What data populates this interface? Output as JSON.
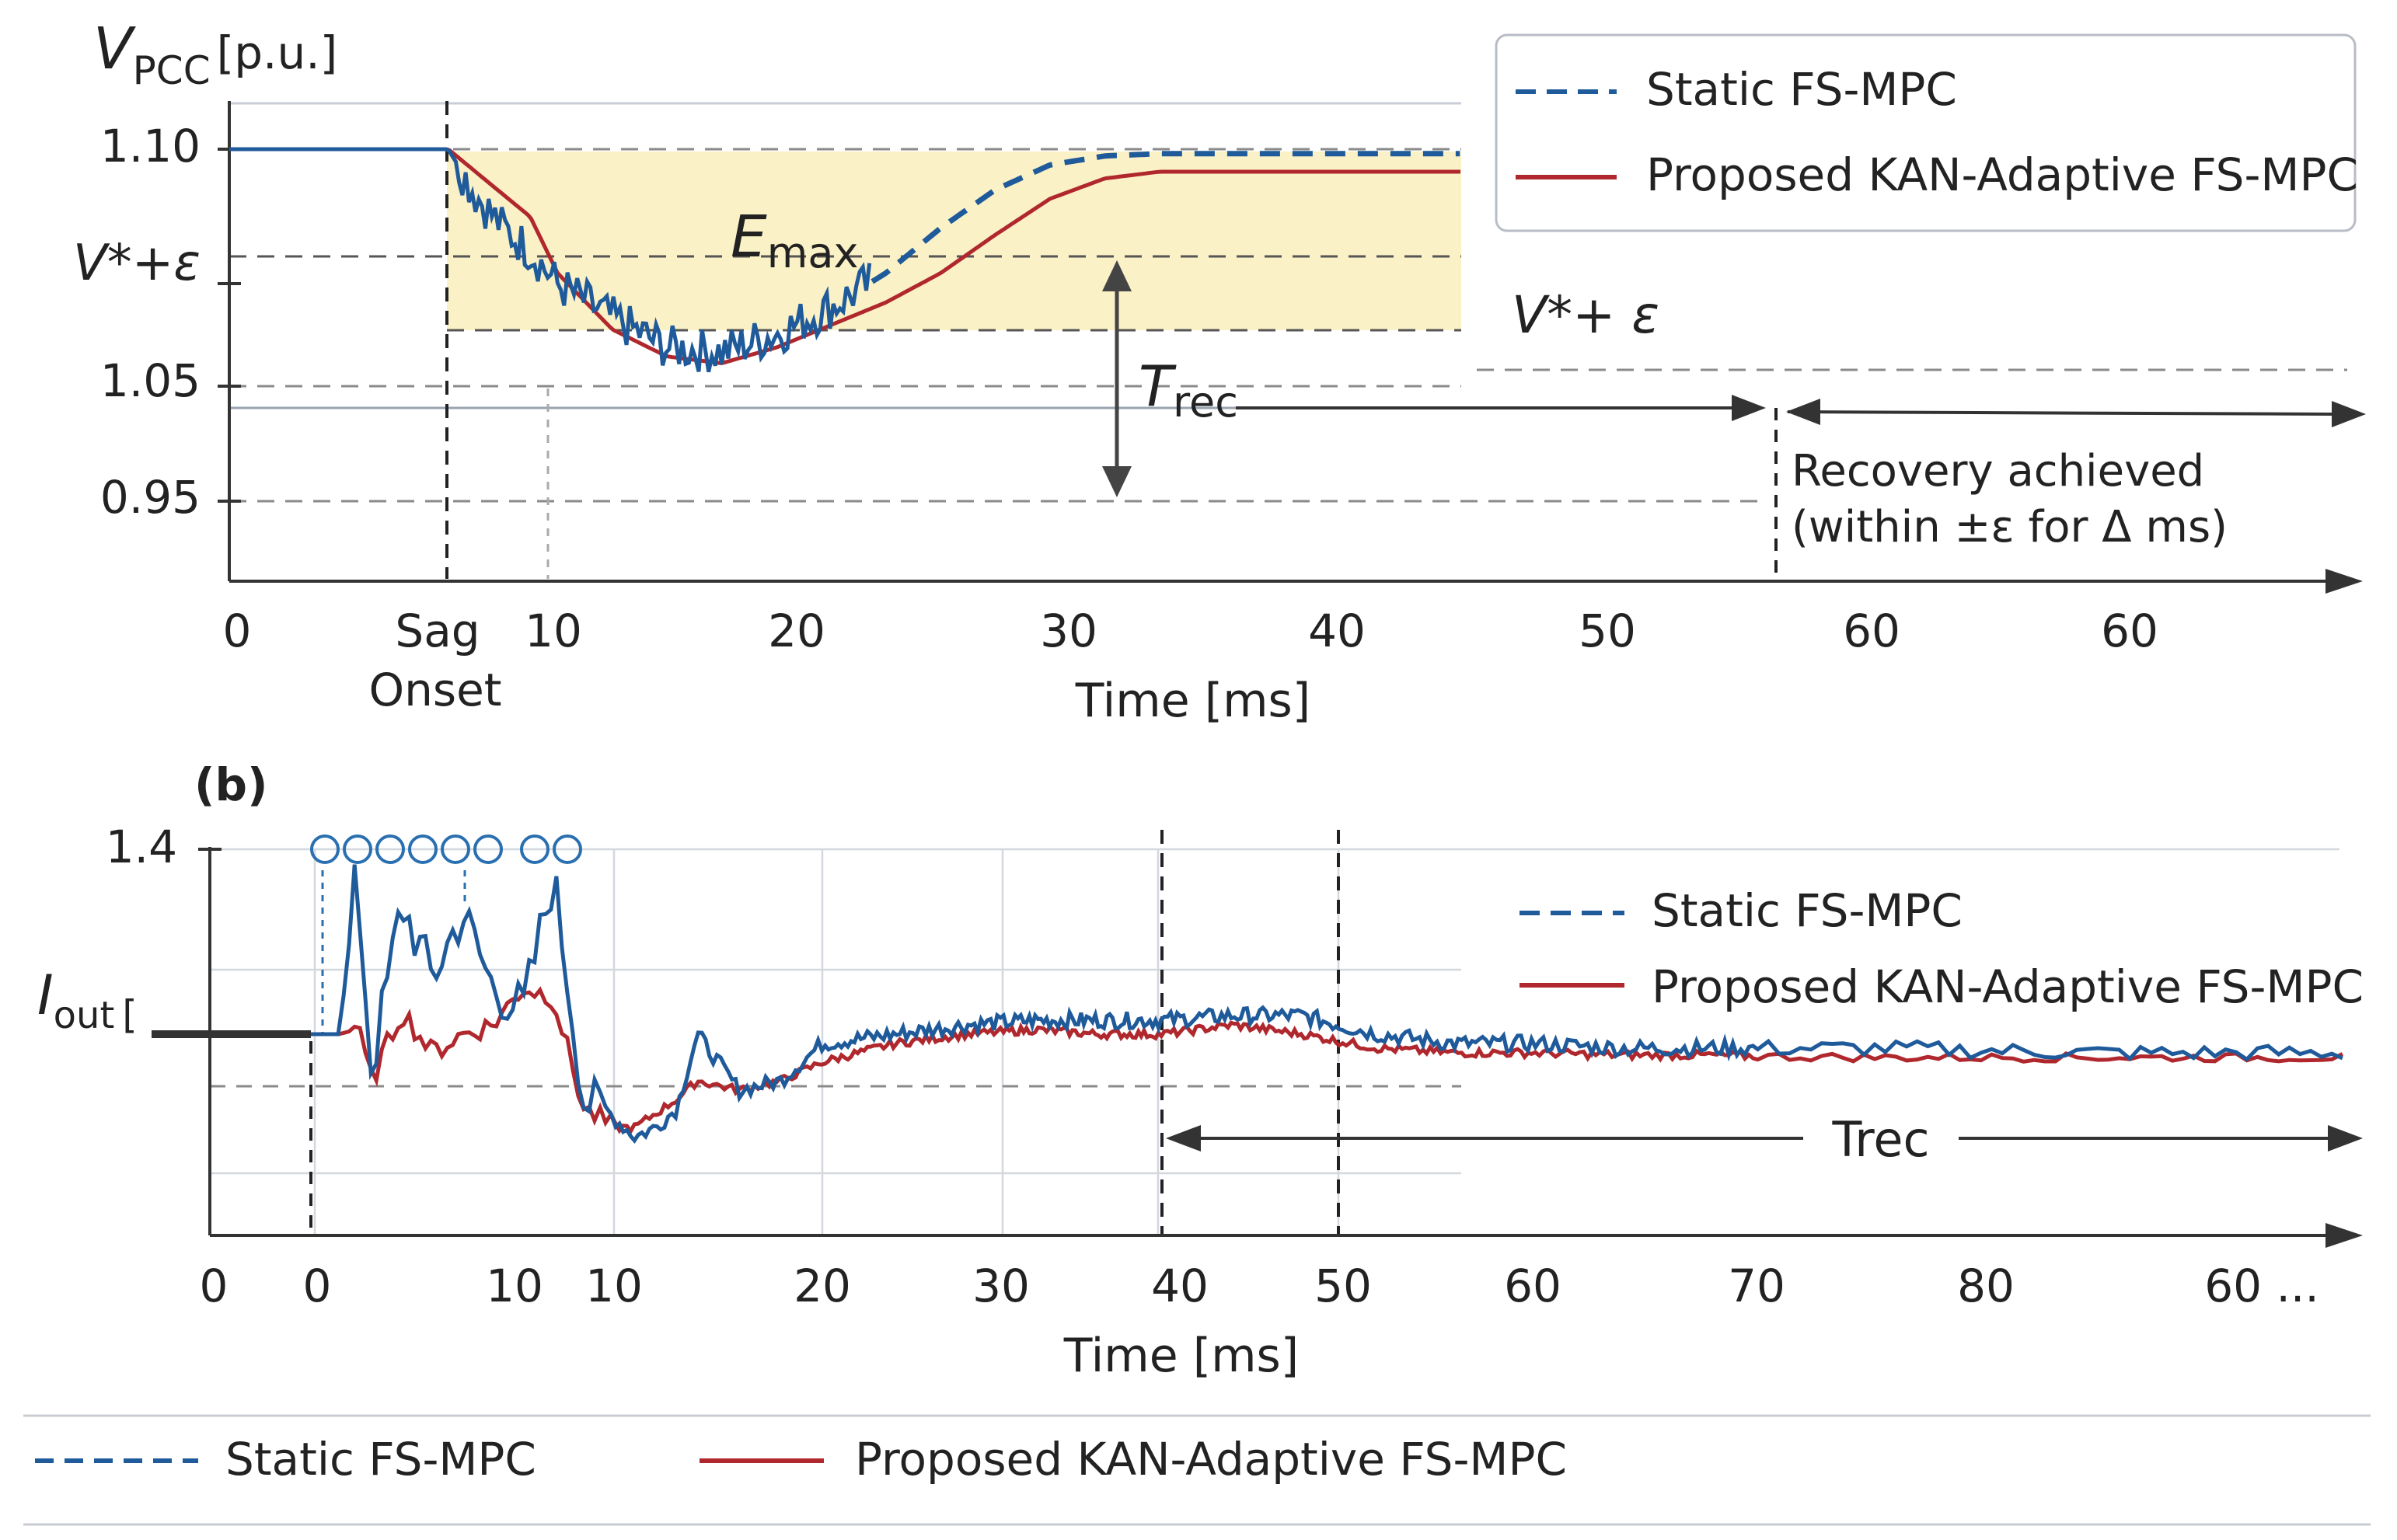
{
  "colors": {
    "static": "#1f5a9a",
    "adaptive": "#b0282d",
    "band": "#fbf1c6",
    "axis": "#333333",
    "dashed_guide": "#8a8a8a",
    "grid": "#c8cdd6"
  },
  "chart_data": [
    {
      "type": "line",
      "panel": "a",
      "ylabel_main": "V",
      "ylabel_sub": "PCC",
      "ylabel_unit": "[p.u.]",
      "xlabel": "Time [ms]",
      "x_tick_labels": [
        "0",
        "Sag",
        "10",
        "20",
        "30",
        "40",
        "50",
        "60",
        "60"
      ],
      "x_tick_label_onset": "Onset",
      "y_tick_labels": [
        "1.10",
        "V*+ε",
        "1.05",
        "0.95"
      ],
      "series": [
        {
          "name": "Static FS-MPC",
          "style": "dashed",
          "x": [
            0,
            8,
            9,
            10,
            11,
            12,
            14,
            16,
            18,
            20,
            22,
            24,
            26,
            28,
            30,
            32,
            34,
            36,
            40,
            45
          ],
          "y": [
            1.1,
            1.1,
            1.08,
            1.065,
            1.055,
            1.04,
            1.025,
            1.012,
            1.01,
            1.018,
            1.03,
            1.045,
            1.065,
            1.082,
            1.093,
            1.097,
            1.098,
            1.098,
            1.098,
            1.098
          ]
        },
        {
          "name": "Proposed KAN-Adaptive FS-MPC",
          "style": "solid",
          "x": [
            0,
            8,
            9,
            10,
            11,
            12,
            14,
            16,
            18,
            20,
            22,
            24,
            26,
            28,
            30,
            32,
            34,
            36,
            40,
            45
          ],
          "y": [
            1.1,
            1.1,
            1.09,
            1.08,
            1.07,
            1.045,
            1.02,
            1.008,
            1.005,
            1.012,
            1.022,
            1.032,
            1.045,
            1.062,
            1.078,
            1.087,
            1.09,
            1.09,
            1.09,
            1.09
          ]
        }
      ],
      "annotations": {
        "emax_main": "E",
        "emax_sub": "max",
        "vstar_band_label": "V*+ ε",
        "trec_main": "T",
        "trec_sub": "rec",
        "recovery_line1": "Recovery achieved",
        "recovery_line2": "(within ±ε for Δ ms)"
      },
      "legend": {
        "position": "top-right",
        "entries": [
          "Static FS-MPC",
          "Proposed KAN-Adaptive FS-MPC"
        ]
      }
    },
    {
      "type": "line",
      "panel": "b",
      "panel_label": "(b)",
      "ylabel_main": "I",
      "ylabel_sub": "out",
      "ylabel_unit": "[",
      "xlabel": "Time [ms]",
      "x_tick_labels": [
        "0",
        "0",
        "10",
        "10",
        "20",
        "30",
        "40",
        "50",
        "60",
        "70",
        "80",
        "60 ..."
      ],
      "y_tick_labels": [
        "1.4"
      ],
      "series": [
        {
          "name": "Static FS-MPC",
          "style": "dashed",
          "x": [
            0,
            1,
            1.5,
            2,
            3,
            4,
            5,
            6,
            7,
            8,
            9,
            10,
            11,
            12,
            13,
            14,
            16,
            18,
            20,
            24,
            28,
            32,
            36,
            40,
            44,
            48,
            52,
            56,
            60,
            64,
            68,
            72,
            76,
            80
          ],
          "y": [
            1.0,
            1.0,
            1.35,
            0.92,
            1.28,
            1.12,
            1.26,
            1.1,
            1.05,
            1.34,
            0.86,
            0.82,
            0.78,
            0.8,
            0.84,
            1.0,
            0.88,
            0.9,
            0.98,
            1.0,
            1.02,
            1.03,
            1.03,
            1.03,
            1.04,
            1.04,
            1.0,
            0.98,
            0.98,
            0.97,
            0.97,
            0.97,
            0.96,
            0.96
          ]
        },
        {
          "name": "Proposed KAN-Adaptive FS-MPC",
          "style": "solid",
          "x": [
            0,
            1,
            1.5,
            2,
            3,
            4,
            5,
            6,
            7,
            8,
            9,
            10,
            11,
            12,
            13,
            14,
            16,
            18,
            20,
            24,
            28,
            32,
            36,
            40,
            44,
            48,
            52,
            56,
            60,
            64,
            68,
            72,
            76,
            80
          ],
          "y": [
            1.0,
            1.0,
            1.02,
            0.9,
            1.05,
            0.96,
            1.0,
            1.02,
            1.1,
            1.08,
            0.84,
            0.8,
            0.8,
            0.83,
            0.86,
            0.9,
            0.88,
            0.9,
            0.94,
            0.98,
            1.0,
            1.01,
            1.0,
            1.0,
            1.02,
            1.0,
            0.97,
            0.96,
            0.96,
            0.955,
            0.955,
            0.95,
            0.95,
            0.95
          ]
        }
      ],
      "annotations": {
        "trec_label": "Trec"
      },
      "legend": {
        "position": "top-right",
        "entries": [
          "Static FS-MPC",
          "Proposed KAN-Adaptive FS-MPC"
        ]
      }
    }
  ],
  "bottom_legend": {
    "entries": [
      "Static FS-MPC",
      "Proposed KAN-Adaptive FS-MPC"
    ]
  }
}
